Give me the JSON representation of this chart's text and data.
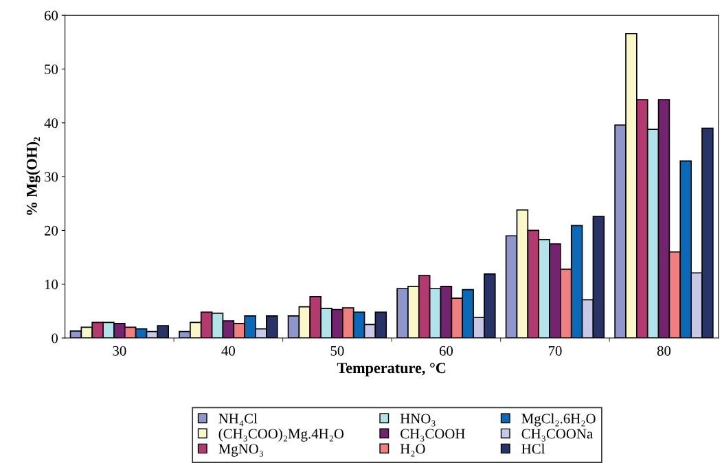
{
  "chart_data": {
    "type": "bar",
    "xlabel": "Temperature, °C",
    "ylabel": "% Mg(OH)₂",
    "categories": [
      "30",
      "40",
      "50",
      "60",
      "70",
      "80"
    ],
    "ylim": [
      0,
      60
    ],
    "yticks": [
      0,
      10,
      20,
      30,
      40,
      50,
      60
    ],
    "grid": false,
    "legend": "bottom",
    "series": [
      {
        "name": "NH₄Cl",
        "color": "#8e96cc",
        "values": [
          1.3,
          1.2,
          4.1,
          9.2,
          19.0,
          39.6
        ]
      },
      {
        "name": "(CH₃COO)₂Mg.4H₂O",
        "color": "#faf7c8",
        "values": [
          2.0,
          2.9,
          5.8,
          9.6,
          23.8,
          56.6
        ]
      },
      {
        "name": "MgNO₃",
        "color": "#b33a6e",
        "values": [
          2.9,
          4.8,
          7.7,
          11.6,
          20.0,
          44.3
        ]
      },
      {
        "name": "HNO₃",
        "color": "#b3e3ea",
        "values": [
          2.9,
          4.6,
          5.5,
          9.2,
          18.3,
          38.8
        ]
      },
      {
        "name": "CH₃COOH",
        "color": "#74236f",
        "values": [
          2.7,
          3.2,
          5.3,
          9.6,
          17.5,
          44.3
        ]
      },
      {
        "name": "H₂O",
        "color": "#f08080",
        "values": [
          2.0,
          2.7,
          5.6,
          7.4,
          12.8,
          16.0
        ]
      },
      {
        "name": "MgCl₂.6H₂O",
        "color": "#0a6ab8",
        "values": [
          1.7,
          4.1,
          4.8,
          9.0,
          20.9,
          32.9
        ]
      },
      {
        "name": "CH₃COONa",
        "color": "#c8c8e6",
        "values": [
          1.2,
          1.7,
          2.5,
          3.8,
          7.1,
          12.1
        ]
      },
      {
        "name": "HCl",
        "color": "#283368",
        "values": [
          2.3,
          4.1,
          4.8,
          11.9,
          22.6,
          39.0
        ]
      }
    ]
  }
}
